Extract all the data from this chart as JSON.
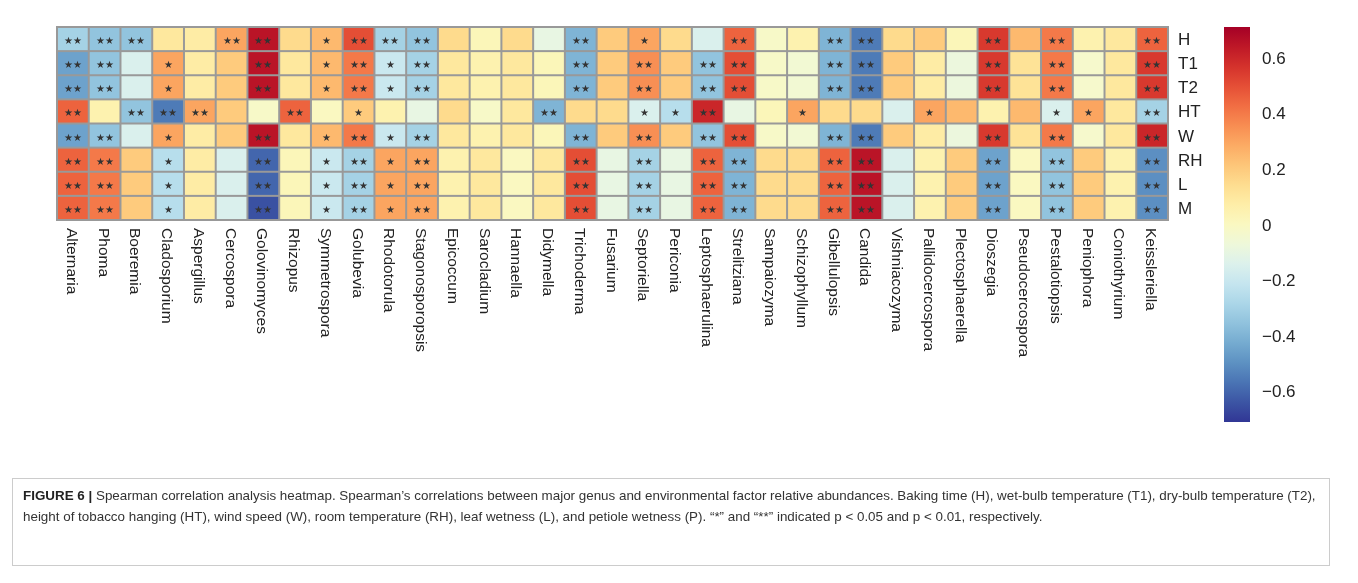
{
  "chart_data": {
    "type": "heatmap",
    "categories": [
      "Alternaria",
      "Phoma",
      "Boeremia",
      "Cladosporium",
      "Aspergillus",
      "Cercospora",
      "Golovinomyces",
      "Rhizopus",
      "Symmetrospora",
      "Golubevia",
      "Rhodotorula",
      "Stagonosporopsis",
      "Epicoccum",
      "Sarocladium",
      "Hannaella",
      "Didymella",
      "Trichoderma",
      "Fusarium",
      "Septoriella",
      "Periconia",
      "Leptosphaerulina",
      "Strelitziana",
      "Sampaiozyma",
      "Schizophyllum",
      "Gibellulopsis",
      "Candida",
      "Vishniacozyma",
      "Pallidocercospora",
      "Plectosphaerella",
      "Dioszegia",
      "Pseudocercospora",
      "Pestalotiopsis",
      "Peniophora",
      "Coniothyrium",
      "Keissleriella"
    ],
    "y_categories": [
      "H",
      "T1",
      "T2",
      "HT",
      "W",
      "RH",
      "L",
      "M"
    ],
    "cells": [
      [
        -0.3,
        -0.35,
        -0.35,
        0.1,
        0.08,
        0.3,
        0.65,
        0.15,
        0.25,
        0.5,
        -0.3,
        -0.35,
        0.15,
        0.02,
        0.15,
        -0.1,
        -0.4,
        0.2,
        0.3,
        0.15,
        -0.15,
        0.45,
        -0.02,
        0.05,
        -0.4,
        -0.55,
        0.15,
        0.2,
        0.02,
        0.55,
        0.25,
        0.4,
        0.05,
        0.1,
        0.45
      ],
      [
        -0.45,
        -0.35,
        -0.15,
        0.3,
        0.08,
        0.2,
        0.65,
        0.1,
        0.25,
        0.4,
        -0.2,
        -0.3,
        0.1,
        0.05,
        0.1,
        0.02,
        -0.4,
        0.2,
        0.35,
        0.2,
        -0.35,
        0.5,
        -0.02,
        -0.05,
        -0.4,
        -0.55,
        0.2,
        0.08,
        -0.08,
        0.55,
        0.12,
        0.4,
        -0.03,
        0.1,
        0.55
      ],
      [
        -0.45,
        -0.35,
        -0.15,
        0.3,
        0.08,
        0.2,
        0.65,
        0.1,
        0.25,
        0.4,
        -0.2,
        -0.3,
        0.1,
        0.05,
        0.1,
        0.02,
        -0.4,
        0.2,
        0.35,
        0.2,
        -0.35,
        0.5,
        -0.02,
        -0.05,
        -0.4,
        -0.55,
        0.2,
        0.08,
        -0.08,
        0.55,
        0.12,
        0.4,
        -0.03,
        0.1,
        0.55
      ],
      [
        0.45,
        0.05,
        -0.35,
        -0.55,
        0.3,
        0.2,
        -0.02,
        0.45,
        0.0,
        0.2,
        0.05,
        -0.1,
        0.15,
        -0.02,
        0.1,
        -0.4,
        0.15,
        0.15,
        -0.15,
        -0.25,
        0.6,
        -0.1,
        0.02,
        0.3,
        0.15,
        0.15,
        -0.15,
        0.3,
        0.25,
        0.05,
        0.25,
        -0.15,
        0.3,
        0.1,
        -0.3
      ],
      [
        -0.45,
        -0.35,
        -0.15,
        0.3,
        0.08,
        0.2,
        0.65,
        0.1,
        0.25,
        0.4,
        -0.2,
        -0.3,
        0.1,
        0.05,
        0.1,
        0.02,
        -0.4,
        0.2,
        0.35,
        0.2,
        -0.35,
        0.5,
        -0.02,
        -0.05,
        -0.4,
        -0.55,
        0.2,
        0.08,
        -0.08,
        0.55,
        0.12,
        0.4,
        -0.03,
        0.1,
        0.6
      ],
      [
        0.45,
        0.4,
        0.2,
        -0.25,
        0.08,
        -0.15,
        -0.6,
        0.02,
        -0.2,
        -0.3,
        0.3,
        0.3,
        0.05,
        0.1,
        0.0,
        0.1,
        0.5,
        -0.1,
        -0.3,
        -0.1,
        0.45,
        -0.4,
        0.15,
        0.15,
        0.45,
        0.65,
        -0.15,
        0.05,
        0.2,
        -0.45,
        0.0,
        -0.35,
        0.2,
        0.05,
        -0.5
      ],
      [
        0.45,
        0.4,
        0.2,
        -0.25,
        0.08,
        -0.15,
        -0.6,
        0.02,
        -0.2,
        -0.3,
        0.3,
        0.3,
        0.05,
        0.1,
        0.0,
        0.1,
        0.5,
        -0.1,
        -0.3,
        -0.1,
        0.45,
        -0.4,
        0.15,
        0.15,
        0.45,
        0.65,
        -0.15,
        0.05,
        0.2,
        -0.45,
        0.0,
        -0.35,
        0.2,
        0.05,
        -0.5
      ],
      [
        0.45,
        0.4,
        0.2,
        -0.25,
        0.08,
        -0.15,
        -0.65,
        0.02,
        -0.2,
        -0.3,
        0.3,
        0.3,
        0.05,
        0.1,
        0.0,
        0.1,
        0.5,
        -0.1,
        -0.3,
        -0.1,
        0.45,
        -0.4,
        0.15,
        0.15,
        0.45,
        0.65,
        -0.15,
        0.05,
        0.2,
        -0.45,
        0.0,
        -0.35,
        0.2,
        0.05,
        -0.5
      ]
    ],
    "cell_labels": [
      [
        "★★",
        "★★",
        "★★",
        null,
        null,
        "★★",
        "★★",
        null,
        "★",
        "★★",
        "★★",
        "★★",
        null,
        null,
        null,
        null,
        "★★",
        null,
        "★",
        null,
        null,
        "★★",
        null,
        null,
        "★★",
        "★★",
        null,
        null,
        null,
        "★★",
        null,
        "★★",
        null,
        null,
        "★★"
      ],
      [
        "★★",
        "★★",
        null,
        "★",
        null,
        null,
        "★★",
        null,
        "★",
        "★★",
        "★",
        "★★",
        null,
        null,
        null,
        null,
        "★★",
        null,
        "★★",
        null,
        "★★",
        "★★",
        null,
        null,
        "★★",
        "★★",
        null,
        null,
        null,
        "★★",
        null,
        "★★",
        null,
        null,
        "★★"
      ],
      [
        "★★",
        "★★",
        null,
        "★",
        null,
        null,
        "★★",
        null,
        "★",
        "★★",
        "★",
        "★★",
        null,
        null,
        null,
        null,
        "★★",
        null,
        "★★",
        null,
        "★★",
        "★★",
        null,
        null,
        "★★",
        "★★",
        null,
        null,
        null,
        "★★",
        null,
        "★★",
        null,
        null,
        "★★"
      ],
      [
        "★★",
        null,
        "★★",
        "★★",
        "★★",
        null,
        null,
        "★★",
        null,
        "★",
        null,
        null,
        null,
        null,
        null,
        "★★",
        null,
        null,
        "★",
        "★",
        "★★",
        null,
        null,
        "★",
        null,
        null,
        null,
        "★",
        null,
        null,
        null,
        "★",
        "★",
        null,
        "★★"
      ],
      [
        "★★",
        "★★",
        null,
        "★",
        null,
        null,
        "★★",
        null,
        "★",
        "★★",
        "★",
        "★★",
        null,
        null,
        null,
        null,
        "★★",
        null,
        "★★",
        null,
        "★★",
        "★★",
        null,
        null,
        "★★",
        "★★",
        null,
        null,
        null,
        "★★",
        null,
        "★★",
        null,
        null,
        "★★"
      ],
      [
        "★★",
        "★★",
        null,
        "★",
        null,
        null,
        "★★",
        null,
        "★",
        "★★",
        "★",
        "★★",
        null,
        null,
        null,
        null,
        "★★",
        null,
        "★★",
        null,
        "★★",
        "★★",
        null,
        null,
        "★★",
        "★★",
        null,
        null,
        null,
        "★★",
        null,
        "★★",
        null,
        null,
        "★★"
      ],
      [
        "★★",
        "★★",
        null,
        "★",
        null,
        null,
        "★★",
        null,
        "★",
        "★★",
        "★",
        "★★",
        null,
        null,
        null,
        null,
        "★★",
        null,
        "★★",
        null,
        "★★",
        "★★",
        null,
        null,
        "★★",
        "★★",
        null,
        null,
        null,
        "★★",
        null,
        "★★",
        null,
        null,
        "★★"
      ],
      [
        "★★",
        "★★",
        null,
        "★",
        null,
        null,
        "★★",
        null,
        "★",
        "★★",
        "★",
        "★★",
        null,
        null,
        null,
        null,
        "★★",
        null,
        "★★",
        null,
        "★★",
        "★★",
        null,
        null,
        "★★",
        "★★",
        null,
        null,
        null,
        "★★",
        null,
        "★★",
        null,
        null,
        "★★"
      ]
    ],
    "clim": [
      -0.71,
      0.71
    ],
    "cticks": [
      0.6,
      0.4,
      0.2,
      0,
      {
        "value": -0.2,
        "label": "−0.2"
      },
      {
        "value": -0.4,
        "label": "−0.4"
      },
      {
        "value": -0.6,
        "label": "−0.6"
      }
    ],
    "annotations": [
      "FIGURE 6 |",
      "Spearman correlation analysis heatmap. Spearman’s correlations between major genus and environmental factor relative abundances. Baking time (H), wet-bulb temperature (T1), dry-bulb temperature (T2), height of tobacco hanging (HT), wind speed (W), room temperature (RH), leaf wetness (L), and petiole wetness (P). “*” and “**” indicated p < 0.05 and p < 0.01, respectively."
    ]
  }
}
